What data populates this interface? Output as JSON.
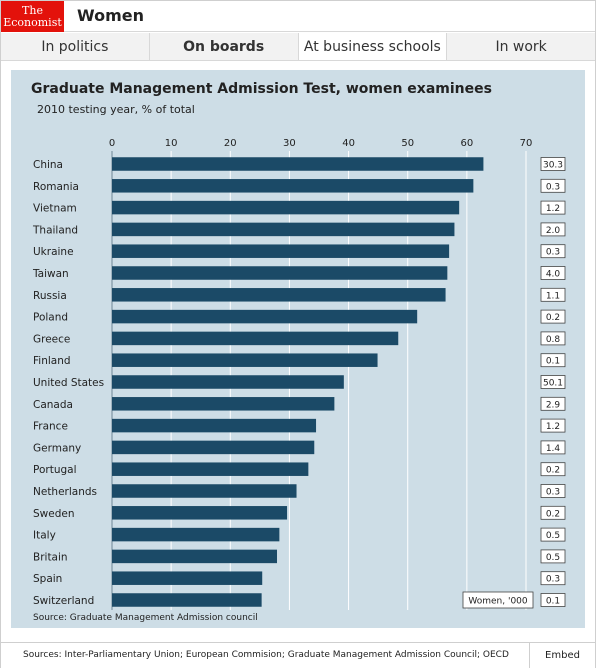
{
  "header": {
    "logo_line1": "The",
    "logo_line2": "Economist",
    "title": "Women"
  },
  "tabs": [
    {
      "label": "In politics",
      "active": false
    },
    {
      "label": "On boards",
      "active": false
    },
    {
      "label": "At business schools",
      "active": true
    },
    {
      "label": "In work",
      "active": false
    }
  ],
  "colors": {
    "bar": "#1b4a67",
    "panel": "#cddde6"
  },
  "chart_data": {
    "type": "bar",
    "orientation": "horizontal",
    "title": "Graduate Management Admission Test, women examinees",
    "subtitle": "2010 testing year, % of total",
    "xlim": [
      0,
      70
    ],
    "x_ticks": [
      0,
      10,
      20,
      30,
      40,
      50,
      60,
      70
    ],
    "categories": [
      "China",
      "Romania",
      "Vietnam",
      "Thailand",
      "Ukraine",
      "Taiwan",
      "Russia",
      "Poland",
      "Greece",
      "Finland",
      "United States",
      "Canada",
      "France",
      "Germany",
      "Portugal",
      "Netherlands",
      "Sweden",
      "Italy",
      "Britain",
      "Spain",
      "Switzerland"
    ],
    "values": [
      62.8,
      61.1,
      58.7,
      57.9,
      57.0,
      56.7,
      56.4,
      51.6,
      48.4,
      44.9,
      39.2,
      37.6,
      34.5,
      34.2,
      33.2,
      31.2,
      29.6,
      28.3,
      27.9,
      25.4,
      25.3
    ],
    "side_label": "Women, '000",
    "side_values": [
      "30.3",
      "0.3",
      "1.2",
      "2.0",
      "0.3",
      "4.0",
      "1.1",
      "0.2",
      "0.8",
      "0.1",
      "50.1",
      "2.9",
      "1.2",
      "1.4",
      "0.2",
      "0.3",
      "0.2",
      "0.5",
      "0.5",
      "0.3",
      "0.1"
    ],
    "source": "Source: Graduate Management Admission council",
    "grid": true
  },
  "footer": {
    "sources": "Sources: Inter-Parliamentary Union; European Commision; Graduate Management Admission Council; OECD",
    "embed_label": "Embed"
  }
}
